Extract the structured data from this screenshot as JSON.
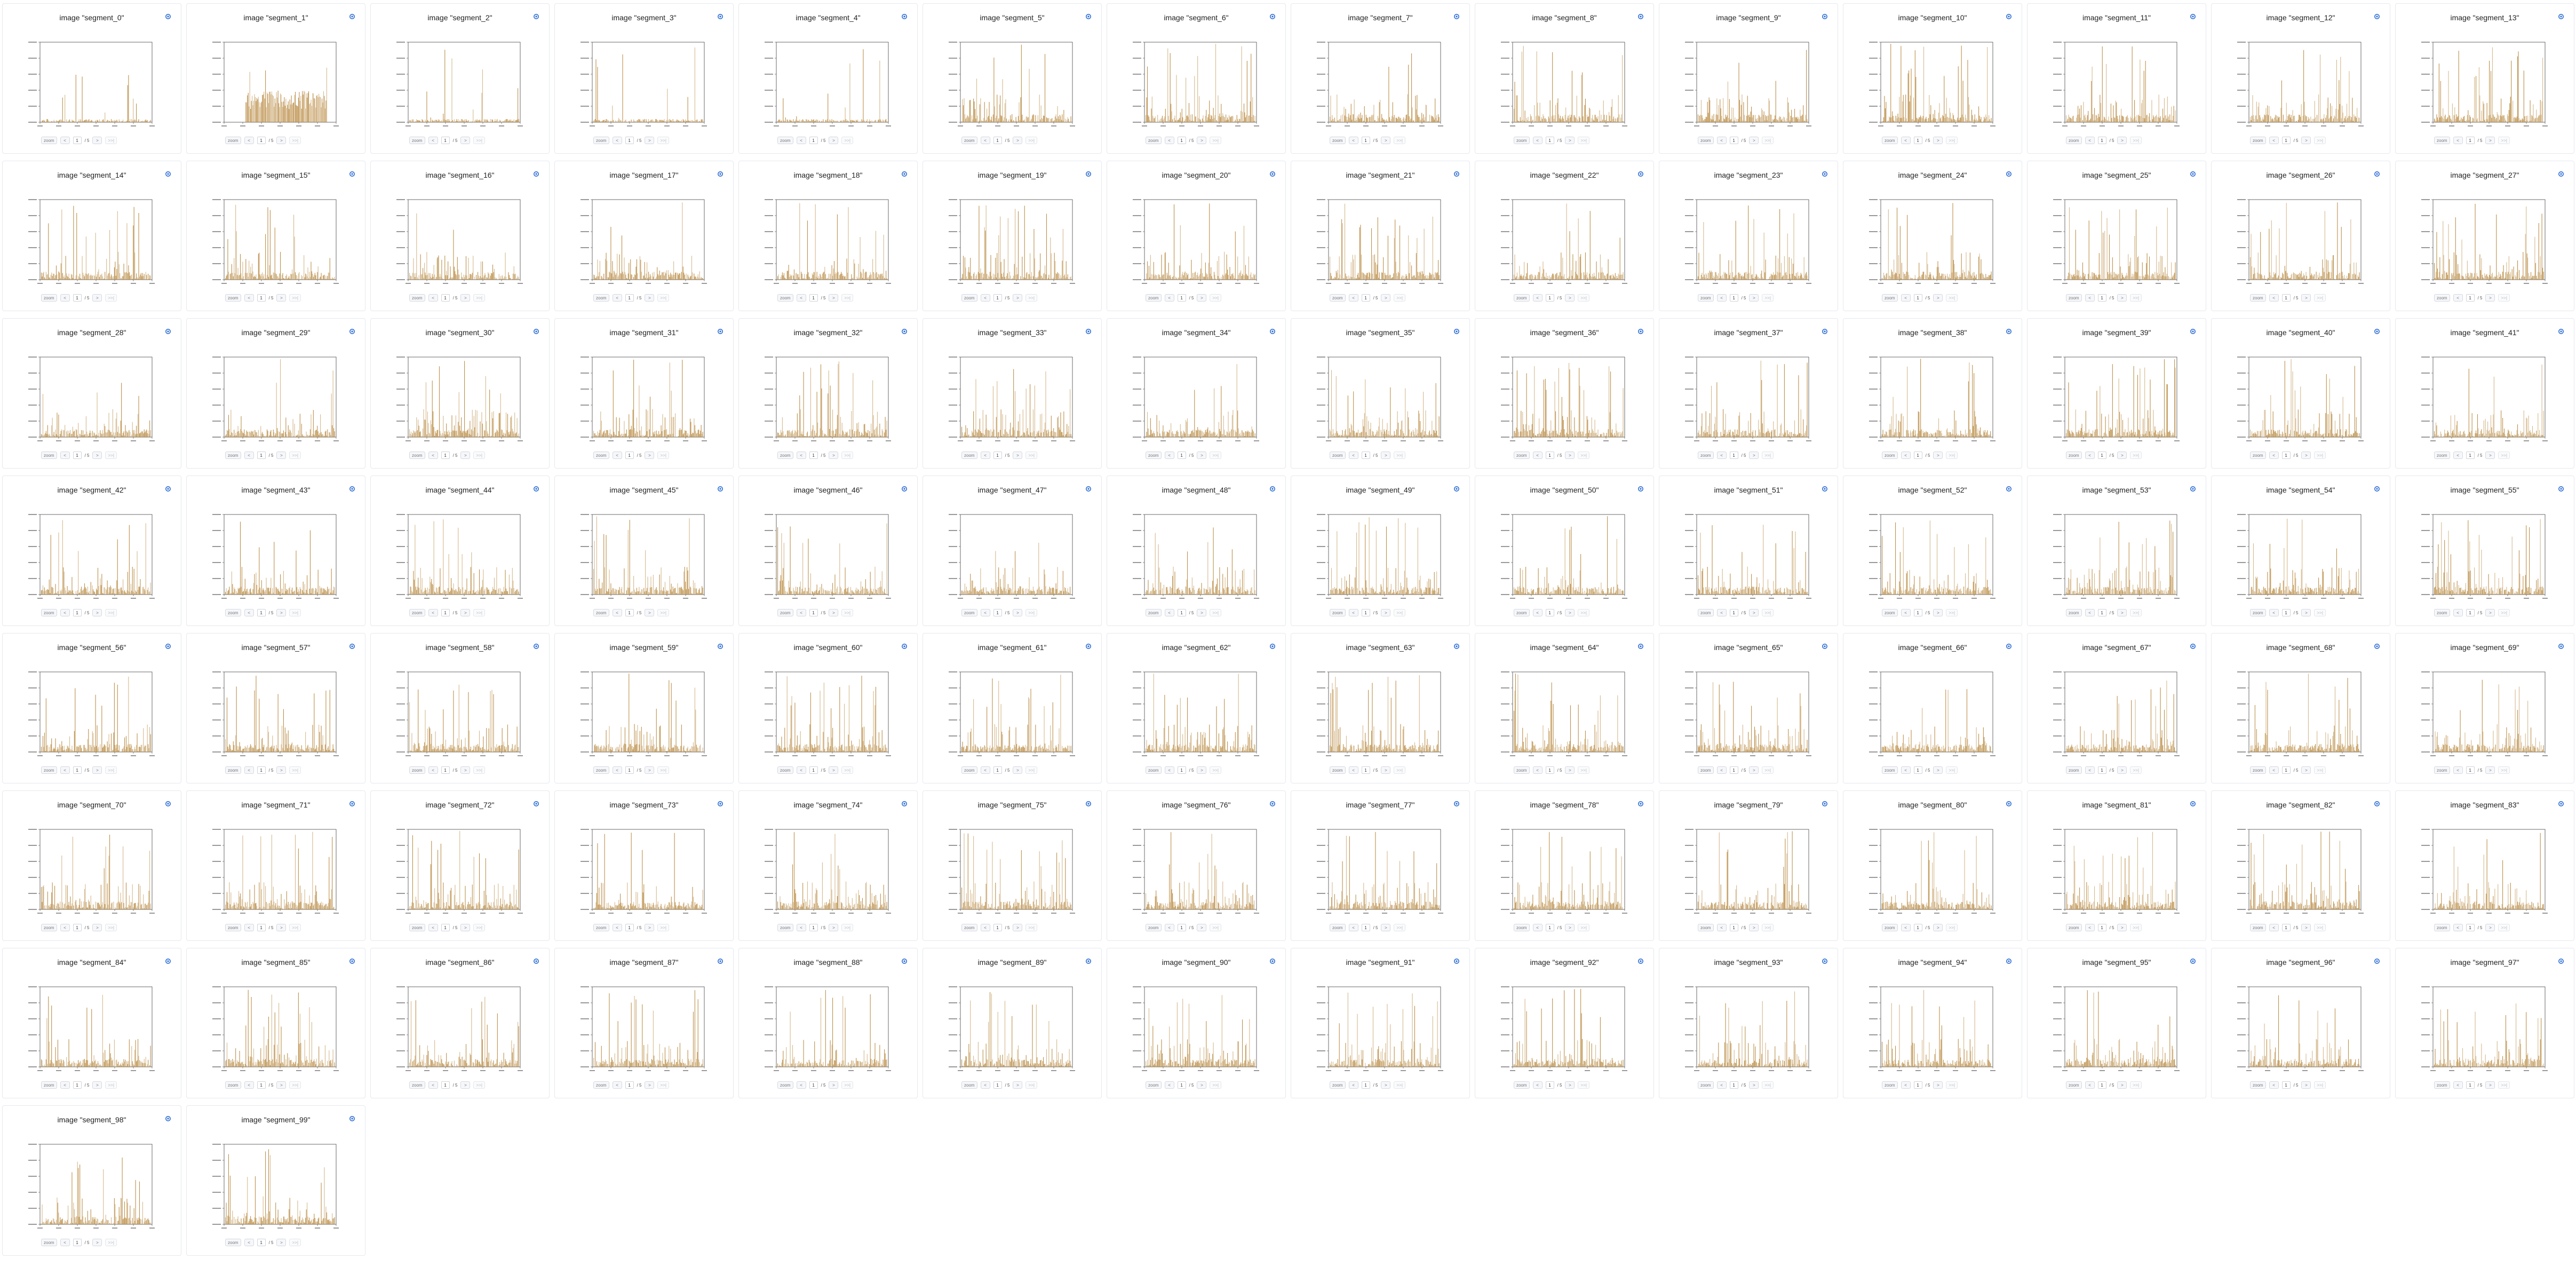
{
  "panel": {
    "title_prefix": "image ",
    "menu_icon": "settings-gear-icon",
    "bar_color": "#b8893f",
    "controls": {
      "zoom_out_label": "zoom",
      "prev_label": "<",
      "page_value": "1",
      "page_total": "/ 5",
      "next_label": ">",
      "last_label": ">>|"
    }
  },
  "segments": [
    "\"segment_0\"",
    "\"segment_1\"",
    "\"segment_2\"",
    "\"segment_3\"",
    "\"segment_4\"",
    "\"segment_5\"",
    "\"segment_6\"",
    "\"segment_7\"",
    "\"segment_8\"",
    "\"segment_9\"",
    "\"segment_10\"",
    "\"segment_11\"",
    "\"segment_12\"",
    "\"segment_13\"",
    "\"segment_14\"",
    "\"segment_15\"",
    "\"segment_16\"",
    "\"segment_17\"",
    "\"segment_18\"",
    "\"segment_19\"",
    "\"segment_20\"",
    "\"segment_21\"",
    "\"segment_22\"",
    "\"segment_23\"",
    "\"segment_24\"",
    "\"segment_25\"",
    "\"segment_26\"",
    "\"segment_27\"",
    "\"segment_28\"",
    "\"segment_29\"",
    "\"segment_30\"",
    "\"segment_31\"",
    "\"segment_32\"",
    "\"segment_33\"",
    "\"segment_34\"",
    "\"segment_35\"",
    "\"segment_36\"",
    "\"segment_37\"",
    "\"segment_38\"",
    "\"segment_39\"",
    "\"segment_40\"",
    "\"segment_41\"",
    "\"segment_42\"",
    "\"segment_43\"",
    "\"segment_44\"",
    "\"segment_45\"",
    "\"segment_46\"",
    "\"segment_47\"",
    "\"segment_48\"",
    "\"segment_49\"",
    "\"segment_50\"",
    "\"segment_51\"",
    "\"segment_52\"",
    "\"segment_53\"",
    "\"segment_54\"",
    "\"segment_55\"",
    "\"segment_56\"",
    "\"segment_57\"",
    "\"segment_58\"",
    "\"segment_59\"",
    "\"segment_60\"",
    "\"segment_61\"",
    "\"segment_62\"",
    "\"segment_63\"",
    "\"segment_64\"",
    "\"segment_65\"",
    "\"segment_66\"",
    "\"segment_67\"",
    "\"segment_68\"",
    "\"segment_69\"",
    "\"segment_70\"",
    "\"segment_71\"",
    "\"segment_72\"",
    "\"segment_73\"",
    "\"segment_74\"",
    "\"segment_75\"",
    "\"segment_76\"",
    "\"segment_77\"",
    "\"segment_78\"",
    "\"segment_79\"",
    "\"segment_80\"",
    "\"segment_81\"",
    "\"segment_82\"",
    "\"segment_83\"",
    "\"segment_84\"",
    "\"segment_85\"",
    "\"segment_86\"",
    "\"segment_87\"",
    "\"segment_88\"",
    "\"segment_89\"",
    "\"segment_90\"",
    "\"segment_91\"",
    "\"segment_92\"",
    "\"segment_93\"",
    "\"segment_94\"",
    "\"segment_95\"",
    "\"segment_96\"",
    "\"segment_97\"",
    "\"segment_98\"",
    "\"segment_99\""
  ]
}
